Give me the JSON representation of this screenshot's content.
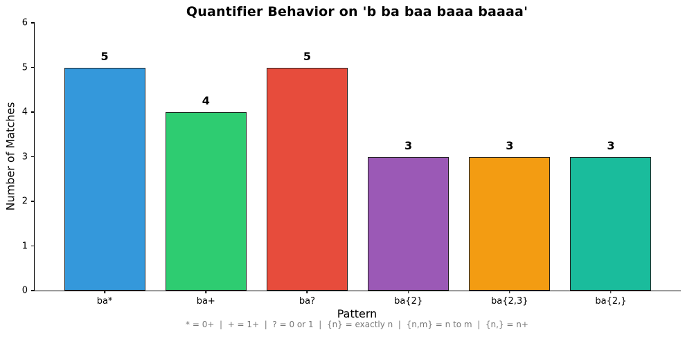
{
  "chart_data": {
    "type": "bar",
    "title": "Quantifier Behavior on 'b ba baa baaa baaaa'",
    "xlabel": "Pattern",
    "ylabel": "Number of Matches",
    "categories": [
      "ba*",
      "ba+",
      "ba?",
      "ba{2}",
      "ba{2,3}",
      "ba{2,}"
    ],
    "values": [
      5,
      4,
      5,
      3,
      3,
      3
    ],
    "value_labels": [
      "5",
      "4",
      "5",
      "3",
      "3",
      "3"
    ],
    "bar_colors": [
      "#3498db",
      "#2ecc71",
      "#e74c3c",
      "#9b59b6",
      "#f39c12",
      "#1abc9c"
    ],
    "bar_edge_color": "#222222",
    "ylim": [
      0,
      6
    ],
    "yticks": [
      0,
      1,
      2,
      3,
      4,
      5,
      6
    ],
    "grid": false,
    "legend_position": "none",
    "footnote": "* = 0+  |  + = 1+  |  ? = 0 or 1  |  {n} = exactly n  |  {n,m} = n to m  |  {n,} = n+"
  }
}
